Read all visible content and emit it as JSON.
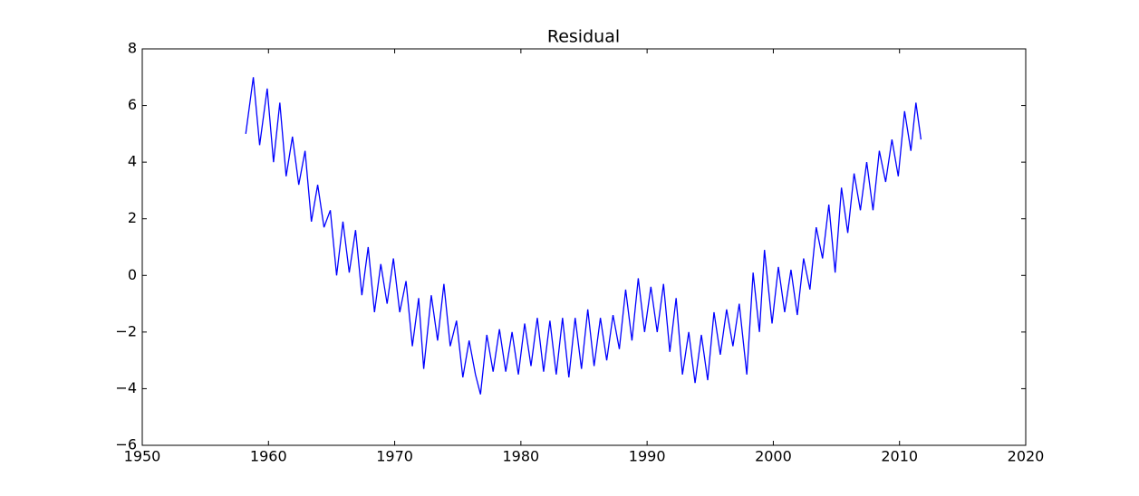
{
  "chart_data": {
    "type": "line",
    "title": "Residual",
    "x": [
      1958.2,
      1958.8,
      1959.3,
      1959.9,
      1960.4,
      1960.9,
      1961.4,
      1961.9,
      1962.4,
      1962.9,
      1963.4,
      1963.9,
      1964.4,
      1964.9,
      1965.4,
      1965.9,
      1966.4,
      1966.9,
      1967.4,
      1967.9,
      1968.4,
      1968.9,
      1969.4,
      1969.9,
      1970.4,
      1970.9,
      1971.4,
      1971.9,
      1972.3,
      1972.9,
      1973.4,
      1973.9,
      1974.4,
      1974.9,
      1975.4,
      1975.9,
      1976.4,
      1976.8,
      1977.3,
      1977.8,
      1978.3,
      1978.8,
      1979.3,
      1979.8,
      1980.3,
      1980.8,
      1981.3,
      1981.8,
      1982.3,
      1982.8,
      1983.3,
      1983.8,
      1984.3,
      1984.8,
      1985.3,
      1985.8,
      1986.3,
      1986.8,
      1987.3,
      1987.8,
      1988.3,
      1988.8,
      1989.3,
      1989.8,
      1990.3,
      1990.8,
      1991.3,
      1991.8,
      1992.3,
      1992.8,
      1993.3,
      1993.8,
      1994.3,
      1994.8,
      1995.3,
      1995.8,
      1996.3,
      1996.8,
      1997.3,
      1997.9,
      1998.4,
      1998.9,
      1999.3,
      1999.9,
      2000.4,
      2000.9,
      2001.4,
      2001.9,
      2002.4,
      2002.9,
      2003.4,
      2003.9,
      2004.4,
      2004.9,
      2005.4,
      2005.9,
      2006.4,
      2006.9,
      2007.4,
      2007.9,
      2008.4,
      2008.9,
      2009.4,
      2009.9,
      2010.4,
      2010.9,
      2011.3,
      2011.7
    ],
    "series": [
      {
        "name": "Residual",
        "color": "#0000ff",
        "values": [
          5.0,
          7.0,
          4.6,
          6.6,
          4.0,
          6.1,
          3.5,
          4.9,
          3.2,
          4.4,
          1.9,
          3.2,
          1.7,
          2.3,
          0.0,
          1.9,
          0.1,
          1.6,
          -0.7,
          1.0,
          -1.3,
          0.4,
          -1.0,
          0.6,
          -1.3,
          -0.2,
          -2.5,
          -0.8,
          -3.3,
          -0.7,
          -2.3,
          -0.3,
          -2.5,
          -1.6,
          -3.6,
          -2.3,
          -3.5,
          -4.2,
          -2.1,
          -3.4,
          -1.9,
          -3.4,
          -2.0,
          -3.5,
          -1.7,
          -3.2,
          -1.5,
          -3.4,
          -1.6,
          -3.5,
          -1.5,
          -3.6,
          -1.5,
          -3.3,
          -1.2,
          -3.2,
          -1.5,
          -3.0,
          -1.4,
          -2.6,
          -0.5,
          -2.3,
          -0.1,
          -2.0,
          -0.4,
          -2.0,
          -0.3,
          -2.7,
          -0.8,
          -3.5,
          -2.0,
          -3.8,
          -2.1,
          -3.7,
          -1.3,
          -2.8,
          -1.2,
          -2.5,
          -1.0,
          -3.5,
          0.1,
          -2.0,
          0.9,
          -1.7,
          0.3,
          -1.3,
          0.2,
          -1.4,
          0.6,
          -0.5,
          1.7,
          0.6,
          2.5,
          0.1,
          3.1,
          1.5,
          3.6,
          2.3,
          4.0,
          2.3,
          4.4,
          3.3,
          4.8,
          3.5,
          5.8,
          4.4,
          6.1,
          4.8
        ]
      }
    ],
    "xlim": [
      1950,
      2020
    ],
    "xticks": [
      1950,
      1960,
      1970,
      1980,
      1990,
      2000,
      2010,
      2020
    ],
    "ylim": [
      -6,
      8
    ],
    "yticks": [
      {
        "value": -6,
        "label": "−6"
      },
      {
        "value": -4,
        "label": "−4"
      },
      {
        "value": -2,
        "label": "−2"
      },
      0,
      2,
      4,
      6,
      8
    ]
  }
}
